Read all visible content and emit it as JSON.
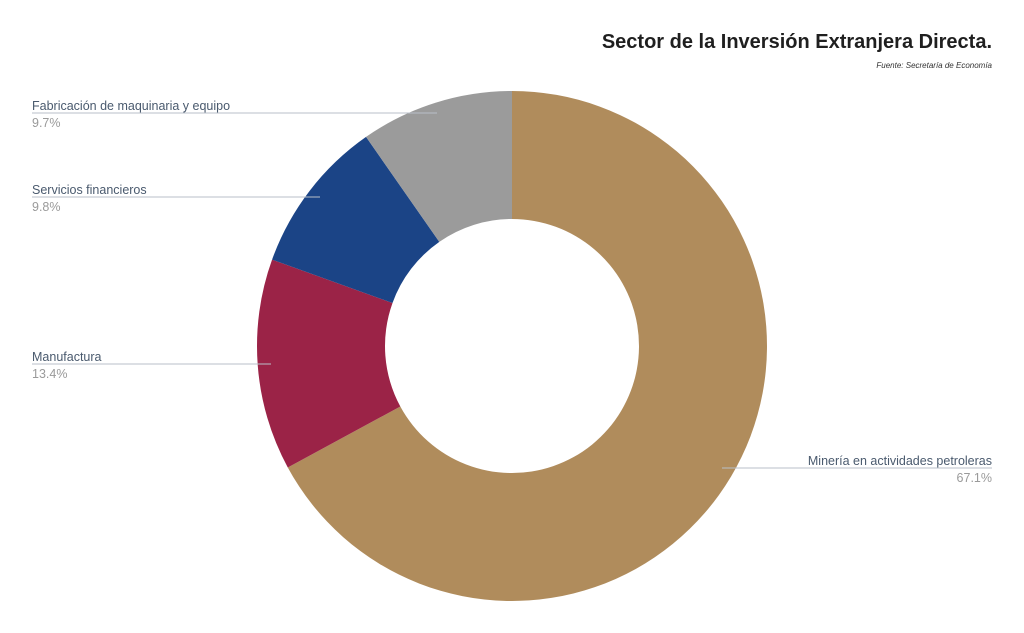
{
  "chart_data": {
    "type": "pie",
    "variant": "donut",
    "title": "Sector de la Inversión Extranjera Directa.",
    "subtitle": "Fuente: Secretaría de Economía",
    "slices": [
      {
        "label": "Minería en actividades petroleras",
        "value": 67.1,
        "value_label": "67.1%",
        "color": "#b08c5c"
      },
      {
        "label": "Manufactura",
        "value": 13.4,
        "value_label": "13.4%",
        "color": "#9b2347"
      },
      {
        "label": "Servicios financieros",
        "value": 9.8,
        "value_label": "9.8%",
        "color": "#1b4486"
      },
      {
        "label": "Fabricación de maquinaria y equipo",
        "value": 9.7,
        "value_label": "9.7%",
        "color": "#9b9b9b"
      }
    ]
  }
}
